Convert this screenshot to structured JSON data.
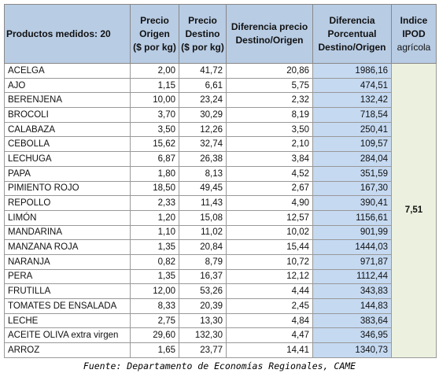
{
  "table": {
    "header": [
      [
        "Productos medidos: 20"
      ],
      [
        "Precio",
        "Origen",
        "($ por kg)"
      ],
      [
        "Precio",
        "Destino",
        "($ por kg)"
      ],
      [
        "Diferencia precio",
        "Destino/Origen"
      ],
      [
        "Diferencia",
        "Porcentual",
        "Destino/Origen"
      ],
      [
        "Indice",
        "IPOD",
        "agrícola"
      ]
    ],
    "rows": [
      [
        "ACELGA",
        "2,00",
        "41,72",
        "20,86",
        "1986,16"
      ],
      [
        "AJO",
        "1,15",
        "6,61",
        "5,75",
        "474,51"
      ],
      [
        "BERENJENA",
        "10,00",
        "23,24",
        "2,32",
        "132,42"
      ],
      [
        "BROCOLI",
        "3,70",
        "30,29",
        "8,19",
        "718,54"
      ],
      [
        "CALABAZA",
        "3,50",
        "12,26",
        "3,50",
        "250,41"
      ],
      [
        "CEBOLLA",
        "15,62",
        "32,74",
        "2,10",
        "109,57"
      ],
      [
        "LECHUGA",
        "6,87",
        "26,38",
        "3,84",
        "284,04"
      ],
      [
        "PAPA",
        "1,80",
        "8,13",
        "4,52",
        "351,59"
      ],
      [
        "PIMIENTO ROJO",
        "18,50",
        "49,45",
        "2,67",
        "167,30"
      ],
      [
        "REPOLLO",
        "2,33",
        "11,43",
        "4,90",
        "390,41"
      ],
      [
        "LIMÓN",
        "1,20",
        "15,08",
        "12,57",
        "1156,61"
      ],
      [
        "MANDARINA",
        "1,10",
        "11,02",
        "10,02",
        "901,99"
      ],
      [
        "MANZANA ROJA",
        "1,35",
        "20,84",
        "15,44",
        "1444,03"
      ],
      [
        "NARANJA",
        "0,82",
        "8,79",
        "10,72",
        "971,87"
      ],
      [
        "PERA",
        "1,35",
        "16,37",
        "12,12",
        "1112,44"
      ],
      [
        "FRUTILLA",
        "12,00",
        "53,26",
        "4,44",
        "343,83"
      ],
      [
        "TOMATES DE ENSALADA",
        "8,33",
        "20,39",
        "2,45",
        "144,83"
      ],
      [
        "LECHE",
        "2,75",
        "13,30",
        "4,84",
        "383,64"
      ],
      [
        "ACEITE OLIVA extra virgen",
        "29,60",
        "132,30",
        "4,47",
        "346,95"
      ],
      [
        "ARROZ",
        "1,65",
        "23,77",
        "14,41",
        "1340,73"
      ]
    ],
    "ipod": "7,51"
  },
  "source": "Fuente: Departamento de Economías Regionales, CAME"
}
